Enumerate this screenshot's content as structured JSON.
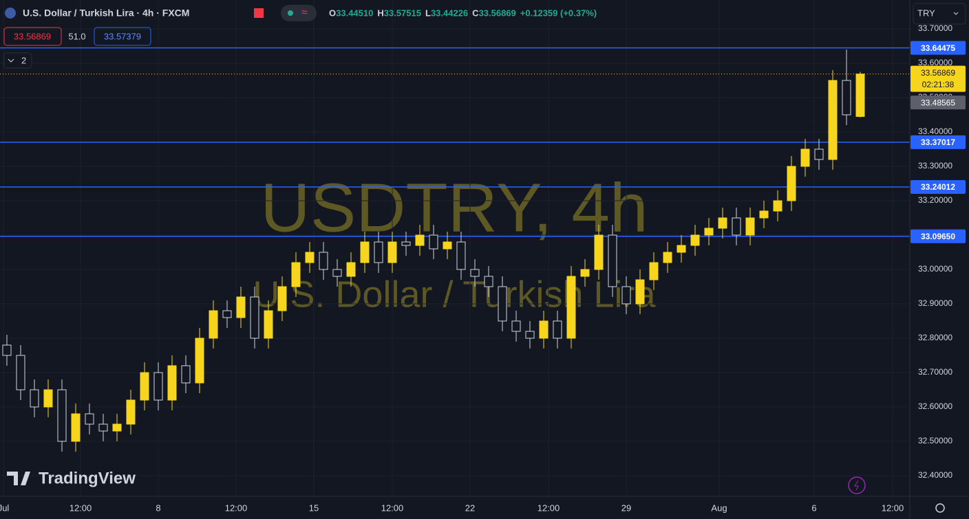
{
  "header": {
    "symbol_title": "U.S. Dollar / Turkish Lira · 4h · FXCM",
    "ohlc": [
      {
        "label": "O",
        "value": "33.44510"
      },
      {
        "label": "H",
        "value": "33.57515"
      },
      {
        "label": "L",
        "value": "33.44226"
      },
      {
        "label": "C",
        "value": "33.56869"
      }
    ],
    "change": "+0.12359 (+0.37%)",
    "sell_price": "33.56869",
    "spread": "51.0",
    "buy_price": "33.57379",
    "indicators_count": "2",
    "currency": "TRY"
  },
  "watermark": {
    "symbol": "USDTRY, 4h",
    "name": "U.S. Dollar / Turkish Lira"
  },
  "logo": "TradingView",
  "chart_data": {
    "type": "candlestick",
    "up_color": "#f7d51d",
    "down_color": "#d1d4dc",
    "open": [
      32.78,
      32.75,
      32.65,
      32.6,
      32.65,
      32.5,
      32.58,
      32.55,
      32.53,
      32.55,
      32.62,
      32.7,
      32.62,
      32.72,
      32.67,
      32.8,
      32.88,
      32.86,
      32.92,
      32.8,
      32.88,
      32.95,
      33.02,
      33.05,
      33.0,
      32.98,
      33.02,
      33.08,
      33.02,
      33.08,
      33.07,
      33.1,
      33.06,
      33.08,
      33.0,
      32.98,
      32.95,
      32.85,
      32.82,
      32.8,
      32.85,
      32.8,
      32.98,
      33.0,
      33.1,
      32.95,
      32.9,
      32.97,
      33.02,
      33.05,
      33.07,
      33.1,
      33.12,
      33.15,
      33.1,
      33.15,
      33.17,
      33.2,
      33.3,
      33.35,
      33.32,
      33.55,
      33.4451
    ],
    "high": [
      32.81,
      32.78,
      32.68,
      32.68,
      32.68,
      32.61,
      32.61,
      32.58,
      32.58,
      32.65,
      32.73,
      32.73,
      32.75,
      32.75,
      32.83,
      32.91,
      32.91,
      32.95,
      32.95,
      32.91,
      32.98,
      33.05,
      33.08,
      33.08,
      33.03,
      33.05,
      33.11,
      33.11,
      33.11,
      33.11,
      33.13,
      33.13,
      33.11,
      33.11,
      33.03,
      33.01,
      32.98,
      32.88,
      32.85,
      32.88,
      32.88,
      33.01,
      33.03,
      33.13,
      33.13,
      32.98,
      33.0,
      33.05,
      33.08,
      33.1,
      33.13,
      33.15,
      33.18,
      33.18,
      33.18,
      33.2,
      33.23,
      33.33,
      33.38,
      33.38,
      33.58,
      33.64,
      33.57515
    ],
    "low": [
      32.72,
      32.62,
      32.57,
      32.57,
      32.47,
      32.47,
      32.52,
      32.5,
      32.5,
      32.52,
      32.59,
      32.59,
      32.59,
      32.64,
      32.64,
      32.77,
      32.83,
      32.83,
      32.77,
      32.77,
      32.85,
      32.92,
      32.99,
      32.97,
      32.95,
      32.95,
      32.99,
      32.99,
      32.99,
      33.04,
      33.04,
      33.03,
      33.03,
      32.97,
      32.95,
      32.92,
      32.82,
      32.79,
      32.77,
      32.77,
      32.77,
      32.77,
      32.95,
      32.97,
      32.92,
      32.87,
      32.87,
      32.94,
      32.99,
      33.02,
      33.04,
      33.07,
      33.09,
      33.07,
      33.07,
      33.12,
      33.14,
      33.17,
      33.27,
      33.29,
      33.29,
      33.42,
      33.44226
    ],
    "close": [
      32.75,
      32.65,
      32.6,
      32.65,
      32.5,
      32.58,
      32.55,
      32.53,
      32.55,
      32.62,
      32.7,
      32.62,
      32.72,
      32.67,
      32.8,
      32.88,
      32.86,
      32.92,
      32.8,
      32.88,
      32.95,
      33.02,
      33.05,
      33.0,
      32.98,
      33.02,
      33.08,
      33.02,
      33.08,
      33.07,
      33.1,
      33.06,
      33.08,
      33.0,
      32.98,
      32.95,
      32.85,
      32.82,
      32.8,
      32.85,
      32.8,
      32.98,
      33.0,
      33.1,
      32.95,
      32.9,
      32.97,
      33.02,
      33.05,
      33.07,
      33.1,
      33.12,
      33.15,
      33.1,
      33.15,
      33.17,
      33.2,
      33.3,
      33.35,
      33.32,
      33.55,
      33.45,
      33.56869
    ],
    "xlim": [
      0,
      66.1
    ],
    "xticks": [
      {
        "value": 0.25,
        "label": "Jul"
      },
      {
        "value": 5.85,
        "label": "12:00"
      },
      {
        "value": 11.5,
        "label": "8"
      },
      {
        "value": 17.15,
        "label": "12:00"
      },
      {
        "value": 22.8,
        "label": "15"
      },
      {
        "value": 28.5,
        "label": "12:00"
      },
      {
        "value": 34.15,
        "label": "22"
      },
      {
        "value": 39.85,
        "label": "12:00"
      },
      {
        "value": 45.5,
        "label": "29"
      },
      {
        "value": 52.25,
        "label": "Aug"
      },
      {
        "value": 59.15,
        "label": "6"
      },
      {
        "value": 64.85,
        "label": "12:00"
      }
    ],
    "ylim": [
      32.34,
      33.784
    ],
    "yticks": [
      {
        "value": 33.7,
        "label": "33.70000"
      },
      {
        "value": 33.6,
        "label": "33.60000"
      },
      {
        "value": 33.5,
        "label": "33.50000"
      },
      {
        "value": 33.4,
        "label": "33.40000"
      },
      {
        "value": 33.3,
        "label": "33.30000"
      },
      {
        "value": 33.2,
        "label": "33.20000"
      },
      {
        "value": 33.1,
        "label": "33.10000"
      },
      {
        "value": 33.0,
        "label": "33.00000"
      },
      {
        "value": 32.9,
        "label": "32.90000"
      },
      {
        "value": 32.8,
        "label": "32.80000"
      },
      {
        "value": 32.7,
        "label": "32.70000"
      },
      {
        "value": 32.6,
        "label": "32.60000"
      },
      {
        "value": 32.5,
        "label": "32.50000"
      },
      {
        "value": 32.4,
        "label": "32.40000"
      }
    ],
    "grid": true,
    "price_lines": [
      33.64475,
      33.37017,
      33.24012,
      {
        "value": 33.0965,
        "label": "33.09650"
      }
    ],
    "line_color": "#2962ff",
    "last_price": 33.56869,
    "countdown": "02:21:38",
    "marker_price": 33.48565
  }
}
